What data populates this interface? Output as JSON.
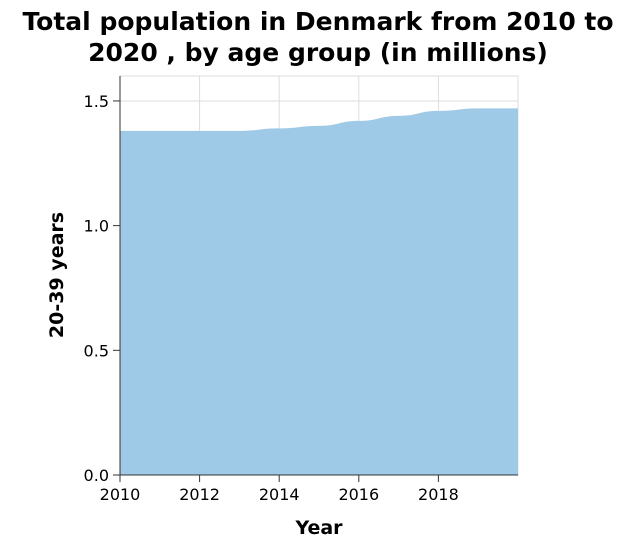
{
  "chart_data": {
    "type": "area",
    "title_lines": [
      "Total population in Denmark from 2010 to",
      "2020 , by age group (in millions)"
    ],
    "xlabel": "Year",
    "ylabel": "20-39 years",
    "x": [
      2010,
      2011,
      2012,
      2013,
      2014,
      2015,
      2016,
      2017,
      2018,
      2019,
      2020
    ],
    "series": [
      {
        "values": [
          1.38,
          1.38,
          1.38,
          1.38,
          1.39,
          1.4,
          1.42,
          1.44,
          1.46,
          1.47,
          1.47
        ]
      }
    ],
    "xlim": [
      2010,
      2020
    ],
    "ylim": [
      0,
      1.6
    ],
    "xticks": [
      2010,
      2012,
      2014,
      2016,
      2018
    ],
    "xtick_labels": [
      "2010",
      "2012",
      "2014",
      "2016",
      "2018"
    ],
    "yticks": [
      0,
      0.5,
      1.0,
      1.5
    ],
    "ytick_labels": [
      "0.0",
      "0.5",
      "1.0",
      "1.5"
    ],
    "grid": true,
    "fill_color": "#9ecae8",
    "grid_color": "#dddddd",
    "axis_color": "#333333"
  }
}
